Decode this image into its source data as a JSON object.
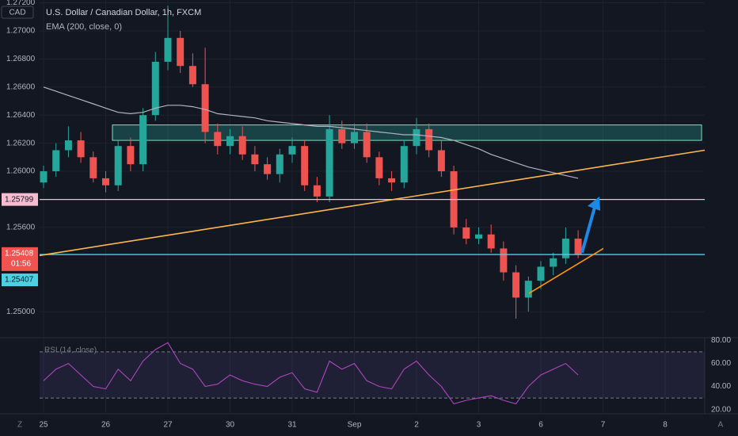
{
  "chart_data": {
    "type": "candlestick",
    "title": "U.S. Dollar / Canadian Dollar, 1h, FXCM",
    "currency": "CAD",
    "indicator": "EMA (200, close, 0)",
    "up_color": "#26a69a",
    "down_color": "#ef5350",
    "ylim": [
      1.2482,
      1.2722
    ],
    "yticks": [
      {
        "value": 1.272,
        "label": "1.27200"
      },
      {
        "value": 1.27,
        "label": "1.27000"
      },
      {
        "value": 1.268,
        "label": "1.26800"
      },
      {
        "value": 1.266,
        "label": "1.26600"
      },
      {
        "value": 1.264,
        "label": "1.26400"
      },
      {
        "value": 1.262,
        "label": "1.26200"
      },
      {
        "value": 1.26,
        "label": "1.26000"
      },
      {
        "value": 1.256,
        "label": "1.25600"
      },
      {
        "value": 1.25,
        "label": "1.25000"
      }
    ],
    "time_labels": [
      "25",
      "26",
      "27",
      "30",
      "31",
      "Sep",
      "2",
      "3",
      "6",
      "7",
      "8"
    ],
    "open": [
      1.2592,
      1.26,
      1.2615,
      1.2622,
      1.261,
      1.2595,
      1.259,
      1.2618,
      1.2605,
      1.264,
      1.2678,
      1.2695,
      1.2675,
      1.2662,
      1.2628,
      1.2618,
      1.2625,
      1.2612,
      1.2605,
      1.2598,
      1.2612,
      1.2618,
      1.259,
      1.2582,
      1.263,
      1.262,
      1.2628,
      1.261,
      1.2595,
      1.2592,
      1.2618,
      1.263,
      1.2615,
      1.26,
      1.256,
      1.2552,
      1.2555,
      1.2545,
      1.2528,
      1.251,
      1.2522,
      1.2532,
      1.2538,
      1.2552
    ],
    "high": [
      1.2604,
      1.262,
      1.2632,
      1.2628,
      1.2614,
      1.26,
      1.2622,
      1.2624,
      1.2645,
      1.2685,
      1.2718,
      1.27,
      1.2684,
      1.2688,
      1.2634,
      1.263,
      1.2632,
      1.2618,
      1.261,
      1.2616,
      1.2624,
      1.2622,
      1.2596,
      1.264,
      1.2636,
      1.2634,
      1.2634,
      1.2614,
      1.26,
      1.2622,
      1.2638,
      1.2634,
      1.2622,
      1.2604,
      1.2566,
      1.256,
      1.2562,
      1.255,
      1.2533,
      1.2525,
      1.2536,
      1.2542,
      1.256,
      1.2558
    ],
    "low": [
      1.2588,
      1.2596,
      1.261,
      1.2606,
      1.2592,
      1.2585,
      1.2586,
      1.26,
      1.26,
      1.2636,
      1.2672,
      1.267,
      1.266,
      1.262,
      1.2612,
      1.2612,
      1.2608,
      1.26,
      1.2594,
      1.2592,
      1.2606,
      1.2586,
      1.2578,
      1.2578,
      1.2616,
      1.2616,
      1.2606,
      1.259,
      1.2586,
      1.2588,
      1.2612,
      1.261,
      1.2596,
      1.2555,
      1.2548,
      1.2548,
      1.2542,
      1.2522,
      1.2495,
      1.25,
      1.2516,
      1.2526,
      1.2534,
      1.2538
    ],
    "close": [
      1.26,
      1.2615,
      1.2622,
      1.261,
      1.2595,
      1.259,
      1.2618,
      1.2605,
      1.264,
      1.2678,
      1.2695,
      1.2675,
      1.2662,
      1.2628,
      1.2618,
      1.2625,
      1.2612,
      1.2605,
      1.2598,
      1.2612,
      1.2618,
      1.259,
      1.2582,
      1.263,
      1.262,
      1.2628,
      1.261,
      1.2595,
      1.2592,
      1.2618,
      1.263,
      1.2615,
      1.26,
      1.256,
      1.2552,
      1.2555,
      1.2545,
      1.2528,
      1.251,
      1.2522,
      1.2532,
      1.2538,
      1.2552,
      1.2541
    ],
    "ema": {
      "color": "#b2b5be",
      "values": [
        1.266,
        1.2657,
        1.2654,
        1.2651,
        1.2648,
        1.2645,
        1.2642,
        1.2641,
        1.2642,
        1.2645,
        1.2647,
        1.2647,
        1.2646,
        1.2644,
        1.2641,
        1.264,
        1.2639,
        1.2638,
        1.2636,
        1.2635,
        1.2634,
        1.2633,
        1.2632,
        1.2632,
        1.2631,
        1.263,
        1.2629,
        1.2628,
        1.2627,
        1.2626,
        1.2626,
        1.2625,
        1.2624,
        1.2622,
        1.2619,
        1.2616,
        1.2612,
        1.2609,
        1.2606,
        1.2603,
        1.2601,
        1.2599,
        1.2597,
        1.2595
      ]
    },
    "zone": {
      "low": 1.2622,
      "high": 1.2633,
      "color": "#26a69a"
    },
    "levels": [
      {
        "value": 1.25799,
        "label": "1.25799",
        "color": "#f8bbd0"
      },
      {
        "value": 1.25407,
        "label": "1.25407",
        "color": "#4dd0e1"
      }
    ],
    "last_price": {
      "value": 1.25408,
      "label": "1.25408",
      "countdown": "01:56",
      "color": "#f05350"
    },
    "trendlines": [
      {
        "from": 1.254,
        "to": 1.2615,
        "color": "#ffb74d"
      },
      {
        "from": 1.2513,
        "to": 1.2545,
        "color": "#ff9800"
      }
    ],
    "arrow": {
      "from": 1.2542,
      "to": 1.2582,
      "color": "#1e88e5"
    },
    "rsi": {
      "title": "RSI (14, close)",
      "color": "#ab47bc",
      "ylim": [
        17,
        83
      ],
      "yticks": [
        {
          "value": 80,
          "label": "80.00"
        },
        {
          "value": 60,
          "label": "60.00"
        },
        {
          "value": 40,
          "label": "40.00"
        },
        {
          "value": 20,
          "label": "20.00"
        }
      ],
      "bands": [
        70,
        30
      ],
      "values": [
        45,
        55,
        60,
        50,
        40,
        38,
        55,
        45,
        62,
        72,
        78,
        60,
        55,
        40,
        42,
        50,
        45,
        42,
        40,
        48,
        52,
        38,
        35,
        62,
        55,
        60,
        45,
        40,
        38,
        55,
        62,
        50,
        40,
        25,
        28,
        30,
        32,
        28,
        25,
        40,
        50,
        55,
        60,
        50
      ]
    },
    "corner_labels": [
      "Z",
      "A"
    ]
  }
}
